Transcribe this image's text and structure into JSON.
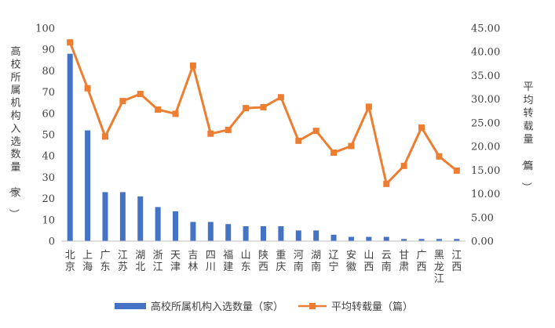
{
  "chart_data": {
    "type": "bar+line",
    "categories": [
      "北京",
      "上海",
      "广东",
      "江苏",
      "湖北",
      "浙江",
      "天津",
      "吉林",
      "四川",
      "福建",
      "山东",
      "陕西",
      "重庆",
      "河南",
      "湖南",
      "辽宁",
      "安徽",
      "山西",
      "云南",
      "甘肃",
      "广西",
      "黑龙江",
      "江西"
    ],
    "series": [
      {
        "name": "高校所属机构入选数量（家）",
        "type": "bar",
        "axis": "left",
        "color": "#4472C4",
        "values": [
          88,
          52,
          23,
          23,
          21,
          16,
          14,
          9,
          9,
          8,
          7,
          7,
          7,
          5,
          5,
          3,
          2,
          2,
          2,
          1,
          1,
          1,
          1
        ]
      },
      {
        "name": "平均转载量（篇）",
        "type": "line",
        "axis": "right",
        "color": "#ED7D31",
        "values": [
          42.0,
          32.3,
          22.1,
          29.6,
          31.1,
          27.8,
          26.9,
          37.1,
          22.7,
          23.5,
          28.1,
          28.3,
          30.4,
          21.2,
          23.3,
          18.7,
          20.1,
          28.4,
          12.1,
          15.9,
          24.0,
          17.9,
          14.9
        ]
      }
    ],
    "y_left": {
      "label": "高校所属机构入选数量（家）",
      "range": [
        0,
        100
      ],
      "ticks": [
        "0",
        "10",
        "20",
        "30",
        "40",
        "50",
        "60",
        "70",
        "80",
        "90",
        "100"
      ]
    },
    "y_right": {
      "label": "平均转载量（篇）",
      "range": [
        0,
        45
      ],
      "ticks": [
        "0.00",
        "5.00",
        "10.00",
        "15.00",
        "20.00",
        "25.00",
        "30.00",
        "35.00",
        "40.00",
        "45.00"
      ]
    },
    "grid": false,
    "legend_position": "bottom"
  }
}
